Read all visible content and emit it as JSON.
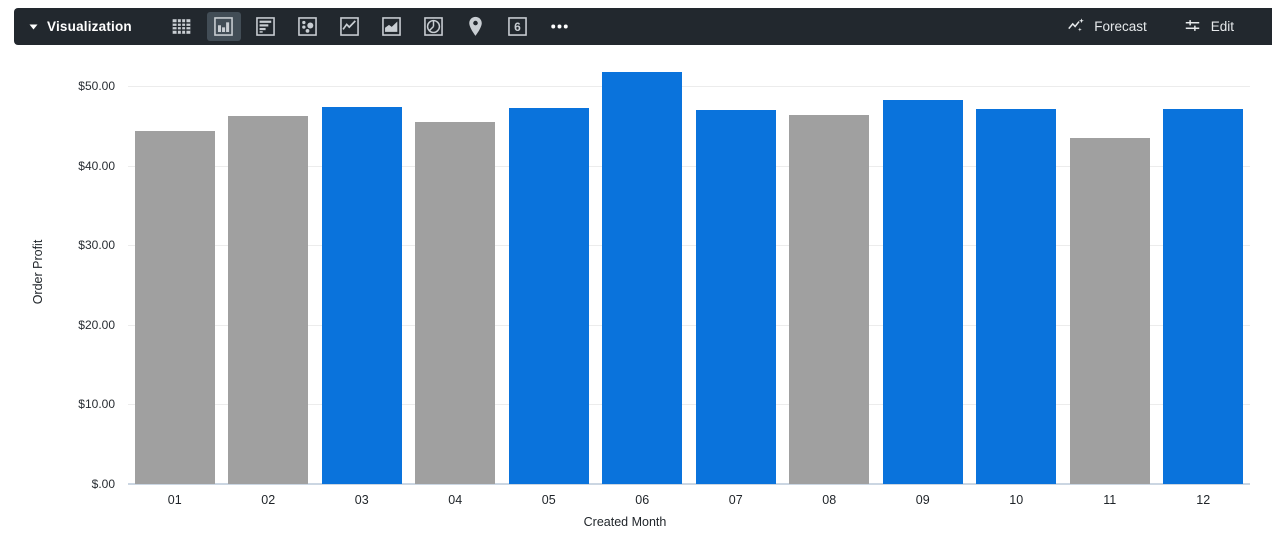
{
  "toolbar": {
    "dropdown_label": "Visualization",
    "chart_type_icons": [
      {
        "name": "table",
        "selected": false
      },
      {
        "name": "column-chart",
        "selected": true
      },
      {
        "name": "bar-chart",
        "selected": false
      },
      {
        "name": "scatter",
        "selected": false
      },
      {
        "name": "line-chart",
        "selected": false
      },
      {
        "name": "area-chart",
        "selected": false
      },
      {
        "name": "pie-chart",
        "selected": false
      },
      {
        "name": "map-pin",
        "selected": false
      },
      {
        "name": "single-value",
        "selected": false,
        "glyph": "6"
      },
      {
        "name": "more-options",
        "selected": false
      }
    ],
    "forecast_label": "Forecast",
    "edit_label": "Edit"
  },
  "colors": {
    "toolbar_bg": "#22282e",
    "selected_tile_bg": "#424d56",
    "icon_color": "#c9ced3",
    "bar_blue": "#0a73dc",
    "bar_gray": "#a0a0a0",
    "gridline": "#ececec",
    "axis_line": "#cbd6e2"
  },
  "chart_data": {
    "type": "bar",
    "title": "",
    "xlabel": "Created Month",
    "ylabel": "Order Profit",
    "categories": [
      "01",
      "02",
      "03",
      "04",
      "05",
      "06",
      "07",
      "08",
      "09",
      "10",
      "11",
      "12"
    ],
    "values": [
      44.4,
      46.2,
      47.4,
      45.5,
      47.2,
      51.8,
      47.0,
      46.4,
      48.3,
      47.1,
      43.5,
      47.1
    ],
    "bar_colors": [
      "#a0a0a0",
      "#a0a0a0",
      "#0a73dc",
      "#a0a0a0",
      "#0a73dc",
      "#0a73dc",
      "#0a73dc",
      "#a0a0a0",
      "#0a73dc",
      "#0a73dc",
      "#a0a0a0",
      "#0a73dc"
    ],
    "ylim": [
      0,
      53.3
    ],
    "yticks": [
      {
        "value": 0,
        "label": "$.00"
      },
      {
        "value": 10,
        "label": "$10.00"
      },
      {
        "value": 20,
        "label": "$20.00"
      },
      {
        "value": 30,
        "label": "$30.00"
      },
      {
        "value": 40,
        "label": "$40.00"
      },
      {
        "value": 50,
        "label": "$50.00"
      }
    ],
    "grid": true,
    "legend": false
  }
}
